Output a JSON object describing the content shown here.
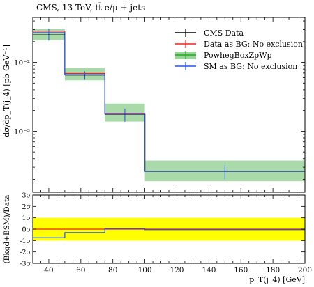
{
  "chart_data": {
    "type": "line",
    "title": "CMS, 13 TeV, tt̄ e/μ + jets",
    "xlabel": "p_T(j_4) [GeV]",
    "ylabel": "dσ/dp_T(j_4) [pb GeV⁻¹]",
    "yscale": "log",
    "xlim": [
      30,
      200
    ],
    "ylim": [
      0.00013,
      0.045
    ],
    "bin_edges": [
      30,
      50,
      75,
      100,
      200
    ],
    "x_ticks": [
      "40",
      "60",
      "80",
      "100",
      "120",
      "140",
      "160",
      "180",
      "200"
    ],
    "y_ticks": [
      "10⁻³",
      "10⁻²"
    ],
    "legend_position": "top-right",
    "series": [
      {
        "name": "CMS Data",
        "color": "#000000",
        "kind": "points",
        "x": [
          40,
          62.5,
          87.5,
          150
        ],
        "y": [
          0.0255,
          0.0065,
          0.00175,
          0.00026
        ],
        "yerr": [
          0.0048,
          0.0009,
          0.00038,
          6e-05
        ]
      },
      {
        "name": "Data as BG: No exclusion",
        "color": "#ee2222",
        "kind": "step",
        "y": [
          0.0285,
          0.0069,
          0.00182,
          0.000262
        ]
      },
      {
        "name": "PowhegBoxZpWp",
        "color": "#22aa22",
        "kind": "band",
        "y": [
          0.027,
          0.0066,
          0.00178,
          0.000262
        ],
        "band_low": [
          0.021,
          0.0055,
          0.00138,
          0.000188
        ],
        "band_high": [
          0.0305,
          0.0083,
          0.00252,
          0.000375
        ]
      },
      {
        "name": "SM as BG: No exclusion",
        "color": "#2255ee",
        "kind": "step",
        "y": [
          0.027,
          0.0066,
          0.00178,
          0.000262
        ]
      }
    ],
    "ratio_panel": {
      "ylabel": "(Bkgd+BSM)/Data",
      "ylim": [
        -3,
        3
      ],
      "y_ticks": [
        "3σ",
        "2σ",
        "1σ",
        "0σ",
        "-1σ",
        "-2σ",
        "-3σ"
      ],
      "band_color": "#ffff00",
      "band": [
        -1,
        1
      ],
      "lines": [
        {
          "name": "Data as BG: No exclusion",
          "color": "#ee2222",
          "y": [
            0,
            0,
            0,
            0
          ]
        },
        {
          "name": "SM as BG: No exclusion",
          "color": "#2255ee",
          "y": [
            -0.75,
            -0.3,
            0.05,
            -0.05
          ]
        }
      ]
    }
  }
}
